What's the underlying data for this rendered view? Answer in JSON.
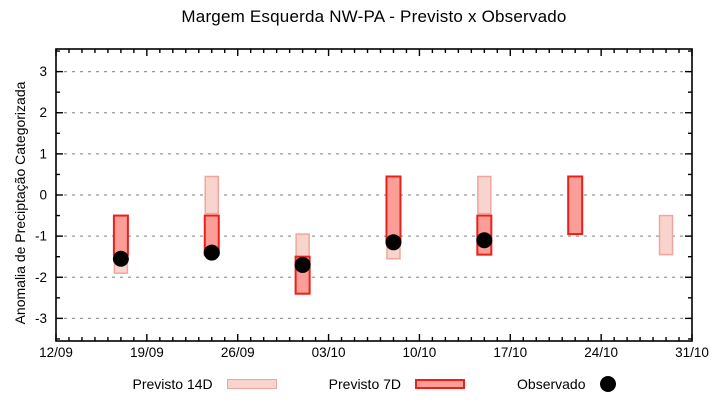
{
  "title": "Margem Esquerda NW-PA - Previsto x Observado",
  "ylabel": "Anomalia de Preciptação Categorizada",
  "legend": {
    "items": [
      {
        "label": "Previsto 14D",
        "swatch": "light-pink-rect"
      },
      {
        "label": "Previsto 7D",
        "swatch": "red-rect"
      },
      {
        "label": "Observado",
        "swatch": "black-dot"
      }
    ]
  },
  "colors": {
    "forecast14_fill": "#f9d4cd",
    "forecast14_border": "#f0a69e",
    "forecast7_fill": "#fb9e97",
    "forecast7_border": "#e8211a",
    "observed": "#000000",
    "grid": "#999999",
    "axis": "#000000",
    "background": "#ffffff"
  },
  "chart_data": {
    "type": "bar",
    "title": "Margem Esquerda NW-PA - Previsto x Observado",
    "xlabel": "",
    "ylabel": "Anomalia de Preciptação Categorizada",
    "ylim": [
      -3.55,
      3.55
    ],
    "yticks": [
      3,
      2,
      1,
      0,
      -1,
      -2,
      -3
    ],
    "y_minor_step": 0.5,
    "grid": "horizontal dashed at integer y values",
    "x_axis": {
      "start_label": "12/09",
      "end_label": "31/10",
      "span_days": 49,
      "major_tick_every_days": 7,
      "minor_tick_every_days": 1,
      "tick_labels": [
        "12/09",
        "19/09",
        "26/09",
        "03/10",
        "10/10",
        "17/10",
        "24/10",
        "31/10"
      ]
    },
    "legend_position": "bottom-center",
    "series": [
      {
        "name": "Previsto 14D",
        "type": "range-bar",
        "points": [
          {
            "date": "17/09",
            "day": 5,
            "top": -0.5,
            "bottom": -1.9
          },
          {
            "date": "24/09",
            "day": 12,
            "top": 0.45,
            "bottom": -0.45
          },
          {
            "date": "01/10",
            "day": 19,
            "top": -0.95,
            "bottom": -1.5
          },
          {
            "date": "08/10",
            "day": 26,
            "top": 0.45,
            "bottom": -1.55
          },
          {
            "date": "15/10",
            "day": 33,
            "top": 0.45,
            "bottom": -0.45
          },
          {
            "date": "29/10",
            "day": 47,
            "top": -0.5,
            "bottom": -1.45
          }
        ]
      },
      {
        "name": "Previsto 7D",
        "type": "range-bar",
        "points": [
          {
            "date": "17/09",
            "day": 5,
            "top": -0.5,
            "bottom": -1.45
          },
          {
            "date": "24/09",
            "day": 12,
            "top": -0.5,
            "bottom": -1.45
          },
          {
            "date": "01/10",
            "day": 19,
            "top": -1.5,
            "bottom": -2.4
          },
          {
            "date": "08/10",
            "day": 26,
            "top": 0.45,
            "bottom": -1.1
          },
          {
            "date": "15/10",
            "day": 33,
            "top": -0.5,
            "bottom": -1.45
          },
          {
            "date": "22/10",
            "day": 40,
            "top": 0.45,
            "bottom": -0.95
          }
        ]
      },
      {
        "name": "Observado",
        "type": "scatter",
        "points": [
          {
            "date": "17/09",
            "day": 5,
            "value": -1.55
          },
          {
            "date": "24/09",
            "day": 12,
            "value": -1.4
          },
          {
            "date": "01/10",
            "day": 19,
            "value": -1.7
          },
          {
            "date": "08/10",
            "day": 26,
            "value": -1.15
          },
          {
            "date": "15/10",
            "day": 33,
            "value": -1.1
          }
        ]
      }
    ]
  }
}
